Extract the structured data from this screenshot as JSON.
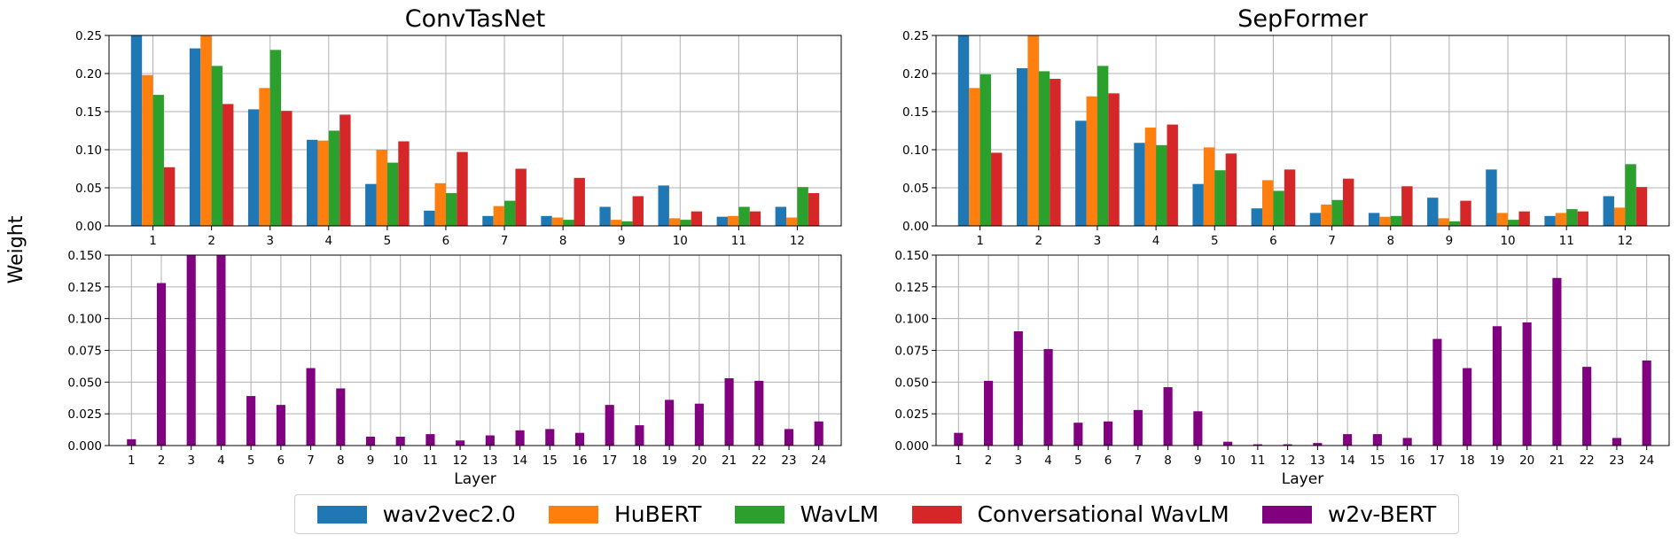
{
  "figure": {
    "shared_ylabel": "Weight",
    "legend": [
      {
        "label": "wav2vec2.0",
        "color": "#1f77b4"
      },
      {
        "label": "HuBERT",
        "color": "#ff7f0e"
      },
      {
        "label": "WavLM",
        "color": "#2ca02c"
      },
      {
        "label": "Conversational WavLM",
        "color": "#d62728"
      },
      {
        "label": "w2v-BERT",
        "color": "#800080"
      }
    ]
  },
  "chart_data": [
    {
      "type": "bar",
      "title": "ConvTasNet",
      "xlabel": "",
      "ylabel": "",
      "grid": true,
      "ylim": [
        0,
        0.25
      ],
      "yticks": [
        "0.00",
        "0.05",
        "0.10",
        "0.15",
        "0.20",
        "0.25"
      ],
      "categories": [
        "1",
        "2",
        "3",
        "4",
        "5",
        "6",
        "7",
        "8",
        "9",
        "10",
        "11",
        "12"
      ],
      "series": [
        {
          "name": "wav2vec2.0",
          "color": "#1f77b4",
          "values": [
            0.25,
            0.233,
            0.153,
            0.113,
            0.055,
            0.02,
            0.013,
            0.013,
            0.025,
            0.053,
            0.012,
            0.025
          ]
        },
        {
          "name": "HuBERT",
          "color": "#ff7f0e",
          "values": [
            0.198,
            0.25,
            0.181,
            0.112,
            0.1,
            0.056,
            0.026,
            0.011,
            0.008,
            0.01,
            0.013,
            0.011
          ]
        },
        {
          "name": "WavLM",
          "color": "#2ca02c",
          "values": [
            0.172,
            0.21,
            0.231,
            0.125,
            0.083,
            0.043,
            0.033,
            0.008,
            0.006,
            0.008,
            0.025,
            0.051
          ]
        },
        {
          "name": "Conversational WavLM",
          "color": "#d62728",
          "values": [
            0.077,
            0.16,
            0.151,
            0.146,
            0.111,
            0.097,
            0.075,
            0.063,
            0.039,
            0.019,
            0.019,
            0.043
          ]
        }
      ]
    },
    {
      "type": "bar",
      "title": "SepFormer",
      "xlabel": "",
      "ylabel": "",
      "grid": true,
      "ylim": [
        0,
        0.25
      ],
      "yticks": [
        "0.00",
        "0.05",
        "0.10",
        "0.15",
        "0.20",
        "0.25"
      ],
      "categories": [
        "1",
        "2",
        "3",
        "4",
        "5",
        "6",
        "7",
        "8",
        "9",
        "10",
        "11",
        "12"
      ],
      "series": [
        {
          "name": "wav2vec2.0",
          "color": "#1f77b4",
          "values": [
            0.25,
            0.207,
            0.138,
            0.109,
            0.055,
            0.023,
            0.017,
            0.017,
            0.037,
            0.074,
            0.013,
            0.039
          ]
        },
        {
          "name": "HuBERT",
          "color": "#ff7f0e",
          "values": [
            0.181,
            0.25,
            0.17,
            0.129,
            0.103,
            0.06,
            0.028,
            0.012,
            0.01,
            0.017,
            0.017,
            0.024
          ]
        },
        {
          "name": "WavLM",
          "color": "#2ca02c",
          "values": [
            0.199,
            0.203,
            0.21,
            0.106,
            0.073,
            0.046,
            0.034,
            0.013,
            0.006,
            0.008,
            0.022,
            0.081
          ]
        },
        {
          "name": "Conversational WavLM",
          "color": "#d62728",
          "values": [
            0.096,
            0.193,
            0.174,
            0.133,
            0.095,
            0.074,
            0.062,
            0.052,
            0.033,
            0.019,
            0.019,
            0.051
          ]
        }
      ]
    },
    {
      "type": "bar",
      "title": "",
      "xlabel": "Layer",
      "ylabel": "",
      "grid": true,
      "ylim": [
        0,
        0.15
      ],
      "yticks": [
        "0.000",
        "0.025",
        "0.050",
        "0.075",
        "0.100",
        "0.125",
        "0.150"
      ],
      "categories": [
        "1",
        "2",
        "3",
        "4",
        "5",
        "6",
        "7",
        "8",
        "9",
        "10",
        "11",
        "12",
        "13",
        "14",
        "15",
        "16",
        "17",
        "18",
        "19",
        "20",
        "21",
        "22",
        "23",
        "24"
      ],
      "series": [
        {
          "name": "w2v-BERT",
          "color": "#800080",
          "values": [
            0.005,
            0.128,
            0.15,
            0.15,
            0.039,
            0.032,
            0.061,
            0.045,
            0.007,
            0.007,
            0.009,
            0.004,
            0.008,
            0.012,
            0.013,
            0.01,
            0.032,
            0.016,
            0.036,
            0.033,
            0.053,
            0.051,
            0.013,
            0.019
          ]
        }
      ]
    },
    {
      "type": "bar",
      "title": "",
      "xlabel": "Layer",
      "ylabel": "",
      "grid": true,
      "ylim": [
        0,
        0.15
      ],
      "yticks": [
        "0.000",
        "0.025",
        "0.050",
        "0.075",
        "0.100",
        "0.125",
        "0.150"
      ],
      "categories": [
        "1",
        "2",
        "3",
        "4",
        "5",
        "6",
        "7",
        "8",
        "9",
        "10",
        "11",
        "12",
        "13",
        "14",
        "15",
        "16",
        "17",
        "18",
        "19",
        "20",
        "21",
        "22",
        "23",
        "24"
      ],
      "series": [
        {
          "name": "w2v-BERT",
          "color": "#800080",
          "values": [
            0.01,
            0.051,
            0.09,
            0.076,
            0.018,
            0.019,
            0.028,
            0.046,
            0.027,
            0.003,
            0.001,
            0.001,
            0.002,
            0.009,
            0.009,
            0.006,
            0.084,
            0.061,
            0.094,
            0.097,
            0.132,
            0.062,
            0.006,
            0.067
          ]
        }
      ]
    }
  ]
}
